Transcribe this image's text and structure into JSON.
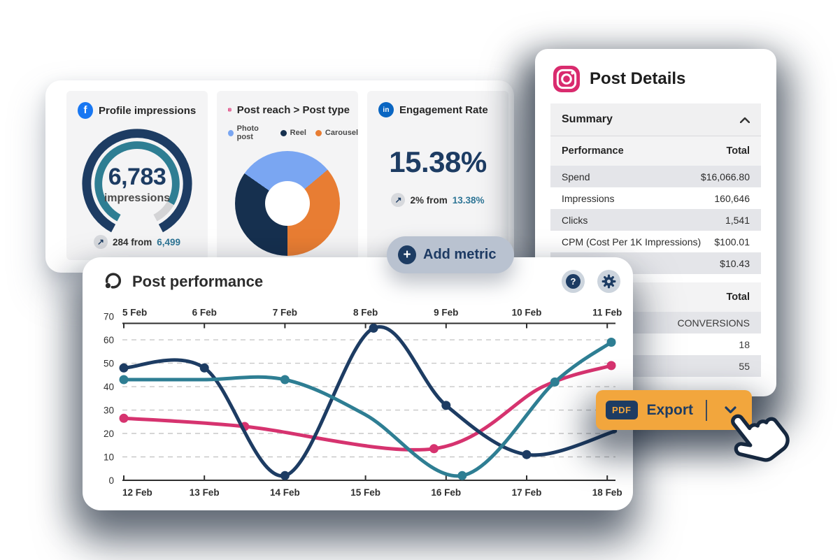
{
  "palette": {
    "navy": "#1d3c63",
    "teal": "#2e7e93",
    "pink": "#d6336f",
    "photo_blue": "#7aa6f2",
    "carousel_orange": "#e87d33",
    "facebook_blue": "#1877f2",
    "linkedin_blue": "#0a66c2",
    "instagram_pink": "#d92b6e",
    "export_orange": "#f2a63d",
    "link_teal": "#2e7596"
  },
  "top_metrics": {
    "add_metric_label": "Add metric",
    "trend_icon": "↗"
  },
  "post_details": {
    "title": "Post Details",
    "summary": {
      "label": "Summary",
      "col_left": "Performance",
      "col_right": "Total",
      "rows": [
        {
          "label": "Spend",
          "value": "$16,066.80"
        },
        {
          "label": "Impressions",
          "value": "160,646"
        },
        {
          "label": "Clicks",
          "value": "1,541"
        },
        {
          "label": "CPM (Cost Per 1K Impressions)",
          "value": "$100.01"
        },
        {
          "label": "",
          "value": "$10.43"
        }
      ]
    },
    "totals": {
      "col_right": "Total",
      "rows": [
        {
          "value": "CONVERSIONS"
        },
        {
          "value": "18"
        },
        {
          "value": "55"
        }
      ]
    }
  },
  "export": {
    "badge": "PDF",
    "label": "Export"
  },
  "chart_data": [
    {
      "type": "gauge",
      "platform": "Facebook",
      "title": "Profile impressions",
      "value": 6783,
      "value_text": "6,783",
      "unit": "impressions",
      "delta": 284,
      "delta_text": "284 from",
      "previous": 6499,
      "previous_text": "6,499",
      "progress_percent": 88
    },
    {
      "type": "pie",
      "platform": "Instagram",
      "title": "Post reach > Post type",
      "donut": true,
      "start_deg": -55,
      "legend": [
        {
          "label": "Photo post",
          "color": "#7aa6f2"
        },
        {
          "label": "Reel",
          "color": "#16304f"
        },
        {
          "label": "Carousel",
          "color": "#e87d33"
        }
      ],
      "segments": [
        {
          "label": "Photo post",
          "color": "#7aa6f2",
          "deg": 105,
          "percent": 29
        },
        {
          "label": "Carousel",
          "color": "#e87d33",
          "deg": 130,
          "percent": 36
        },
        {
          "label": "Reel",
          "color": "#16304f",
          "deg": 125,
          "percent": 35
        }
      ]
    },
    {
      "type": "kpi",
      "platform": "LinkedIn",
      "title": "Engagement Rate",
      "value_text": "15.38%",
      "delta_text": "2% from",
      "previous_text": "13.38%"
    },
    {
      "type": "line",
      "title": "Post performance",
      "ylim": [
        0,
        70
      ],
      "y_ticks": [
        0,
        10,
        20,
        30,
        40,
        50,
        60,
        70
      ],
      "grid": "dashed horizontal at 10-60",
      "x_domain": [
        12,
        18.15
      ],
      "top_x_labels": [
        "5 Feb",
        "6 Feb",
        "7 Feb",
        "8 Feb",
        "9 Feb",
        "10 Feb",
        "11 Feb"
      ],
      "bottom_x_labels": [
        "12 Feb",
        "13 Feb",
        "14 Feb",
        "15 Feb",
        "16 Feb",
        "17 Feb",
        "18 Feb"
      ],
      "x_tick_days": [
        12,
        13,
        14,
        15,
        16,
        17,
        18
      ],
      "series": [
        {
          "name": "pink-series",
          "color": "#d6336f",
          "points": [
            [
              12,
              26.5
            ],
            [
              13.5,
              23
            ],
            [
              15.85,
              13.5
            ],
            [
              17.2,
              40
            ],
            [
              18.05,
              49
            ]
          ],
          "dots": [
            [
              12,
              26.5
            ],
            [
              13.5,
              23
            ],
            [
              15.85,
              13.5
            ],
            [
              18.05,
              49
            ]
          ]
        },
        {
          "name": "navy-series",
          "color": "#1d3c63",
          "points": [
            [
              12,
              48
            ],
            [
              13,
              48
            ],
            [
              14,
              2
            ],
            [
              15.1,
              65
            ],
            [
              16,
              32
            ],
            [
              17,
              11
            ],
            [
              18.1,
              21
            ]
          ],
          "dots": [
            [
              12,
              48
            ],
            [
              13,
              48
            ],
            [
              14,
              2
            ],
            [
              15.1,
              65
            ],
            [
              16,
              32
            ],
            [
              17,
              11
            ]
          ]
        },
        {
          "name": "teal-series",
          "color": "#2e7e93",
          "points": [
            [
              12,
              43
            ],
            [
              13,
              43
            ],
            [
              14,
              43
            ],
            [
              15,
              28
            ],
            [
              16.2,
              2
            ],
            [
              17.35,
              42
            ],
            [
              18.05,
              59
            ]
          ],
          "dots": [
            [
              12,
              43
            ],
            [
              14,
              43
            ],
            [
              16.2,
              2
            ],
            [
              17.35,
              42
            ],
            [
              18.05,
              59
            ]
          ]
        }
      ]
    }
  ]
}
